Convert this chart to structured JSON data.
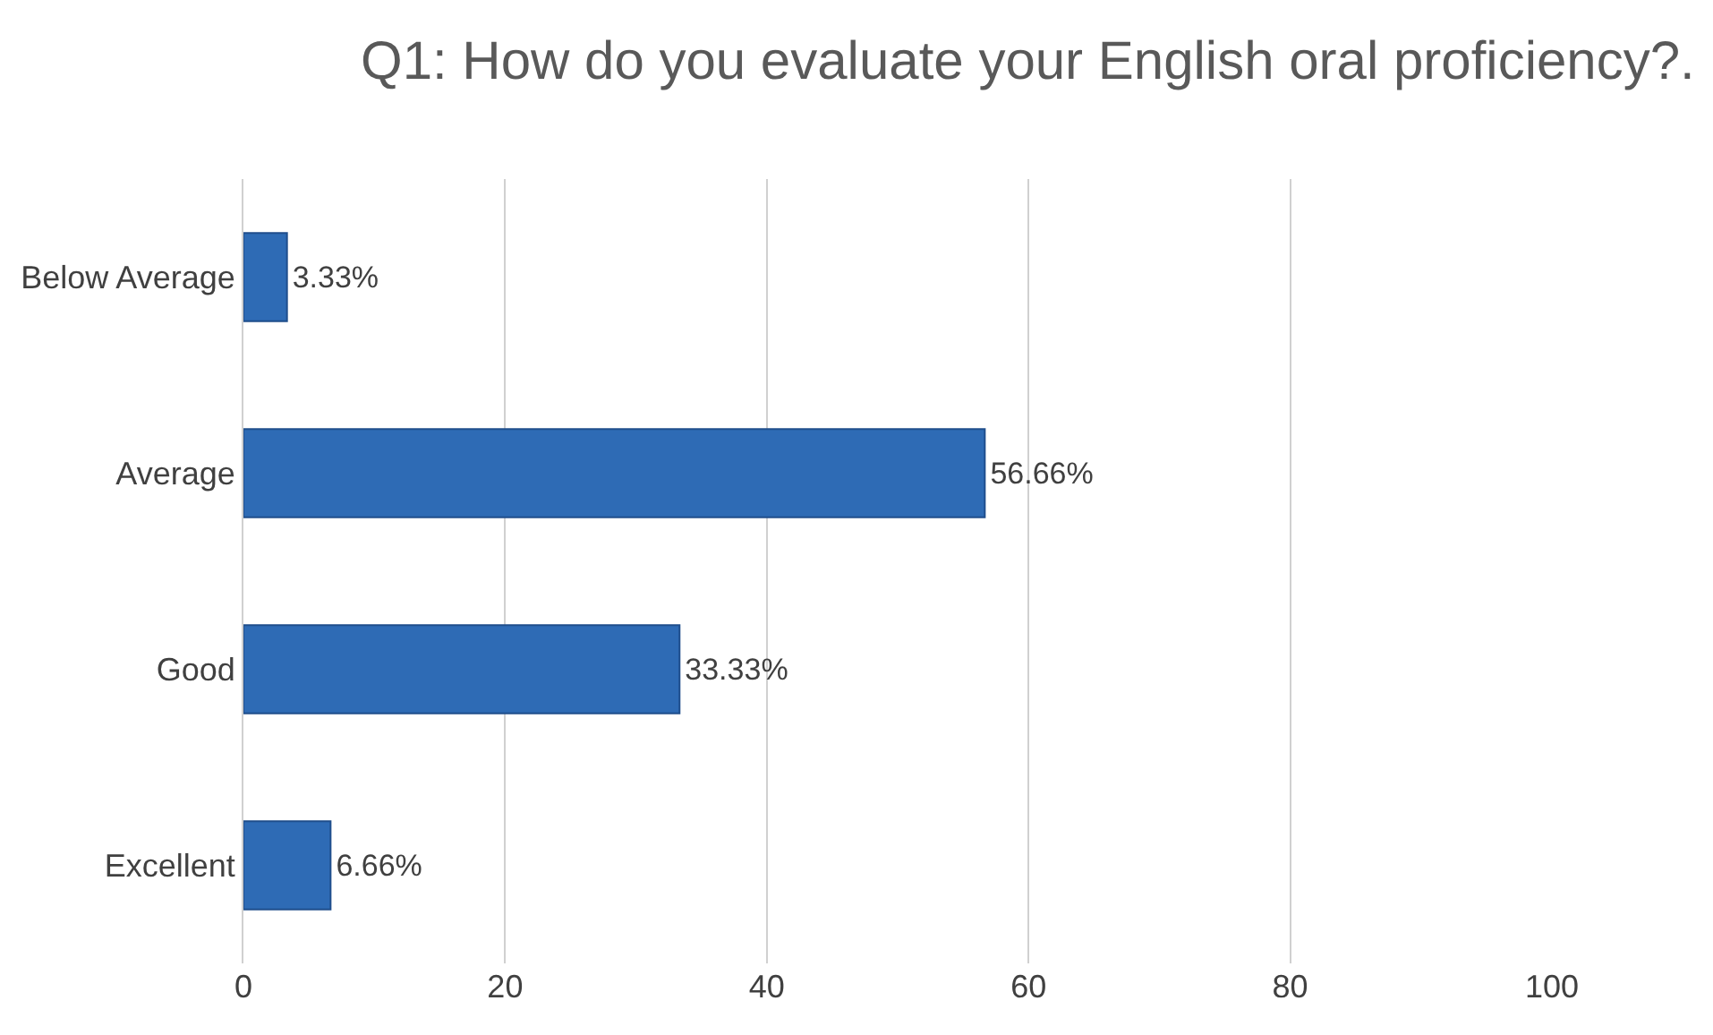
{
  "chart_data": {
    "type": "bar",
    "orientation": "horizontal",
    "title": "Q1: How do you evaluate your English oral proficiency?.",
    "categories": [
      "Below Average",
      "Average",
      "Good",
      "Excellent"
    ],
    "values": [
      3.33,
      56.66,
      33.33,
      6.66
    ],
    "value_labels": [
      "3.33%",
      "56.66%",
      "33.33%",
      "6.66%"
    ],
    "color": "#2e6bb5",
    "xlim": [
      0,
      100
    ],
    "xticks": [
      0,
      20,
      40,
      60,
      80,
      100
    ],
    "grid": "x",
    "legend": false
  }
}
